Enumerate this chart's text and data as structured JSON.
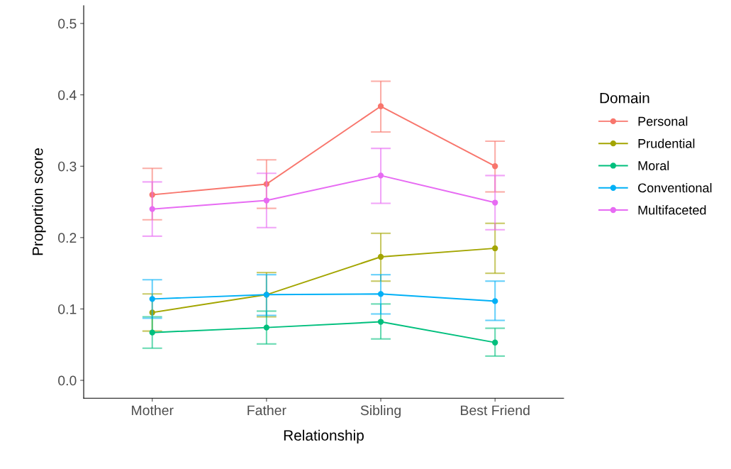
{
  "chart_data": {
    "type": "line",
    "xlabel": "Relationship",
    "ylabel": "Proportion score",
    "legend_title": "Domain",
    "legend": "right",
    "grid": false,
    "marker": "circle",
    "line_style": "solid",
    "categories": [
      "Mother",
      "Father",
      "Sibling",
      "Best Friend"
    ],
    "ylim": [
      -0.025,
      0.525
    ],
    "yticks": [
      {
        "value": 0,
        "label": "0.0"
      },
      {
        "value": 0.1,
        "label": "0.1"
      },
      {
        "value": 0.2,
        "label": "0.2"
      },
      {
        "value": 0.3,
        "label": "0.3"
      },
      {
        "value": 0.4,
        "label": "0.4"
      },
      {
        "value": 0.5,
        "label": "0.5"
      }
    ],
    "series": [
      {
        "name": "Personal",
        "color": "#f8766d",
        "values": [
          0.26,
          0.275,
          0.384,
          0.3
        ],
        "errors": [
          [
            0.225,
            0.297
          ],
          [
            0.241,
            0.309
          ],
          [
            0.348,
            0.419
          ],
          [
            0.264,
            0.335
          ]
        ]
      },
      {
        "name": "Prudential",
        "color": "#a3a500",
        "values": [
          0.095,
          0.12,
          0.173,
          0.185
        ],
        "errors": [
          [
            0.069,
            0.121
          ],
          [
            0.089,
            0.151
          ],
          [
            0.139,
            0.206
          ],
          [
            0.15,
            0.22
          ]
        ]
      },
      {
        "name": "Moral",
        "color": "#00bf7d",
        "values": [
          0.067,
          0.074,
          0.082,
          0.053
        ],
        "errors": [
          [
            0.045,
            0.089
          ],
          [
            0.051,
            0.097
          ],
          [
            0.058,
            0.107
          ],
          [
            0.034,
            0.073
          ]
        ]
      },
      {
        "name": "Conventional",
        "color": "#00b0f6",
        "values": [
          0.114,
          0.12,
          0.121,
          0.111
        ],
        "errors": [
          [
            0.087,
            0.141
          ],
          [
            0.091,
            0.148
          ],
          [
            0.093,
            0.148
          ],
          [
            0.084,
            0.139
          ]
        ]
      },
      {
        "name": "Multifaceted",
        "color": "#e76bf3",
        "values": [
          0.24,
          0.252,
          0.287,
          0.249
        ],
        "errors": [
          [
            0.202,
            0.278
          ],
          [
            0.214,
            0.29
          ],
          [
            0.248,
            0.325
          ],
          [
            0.211,
            0.287
          ]
        ]
      }
    ]
  }
}
